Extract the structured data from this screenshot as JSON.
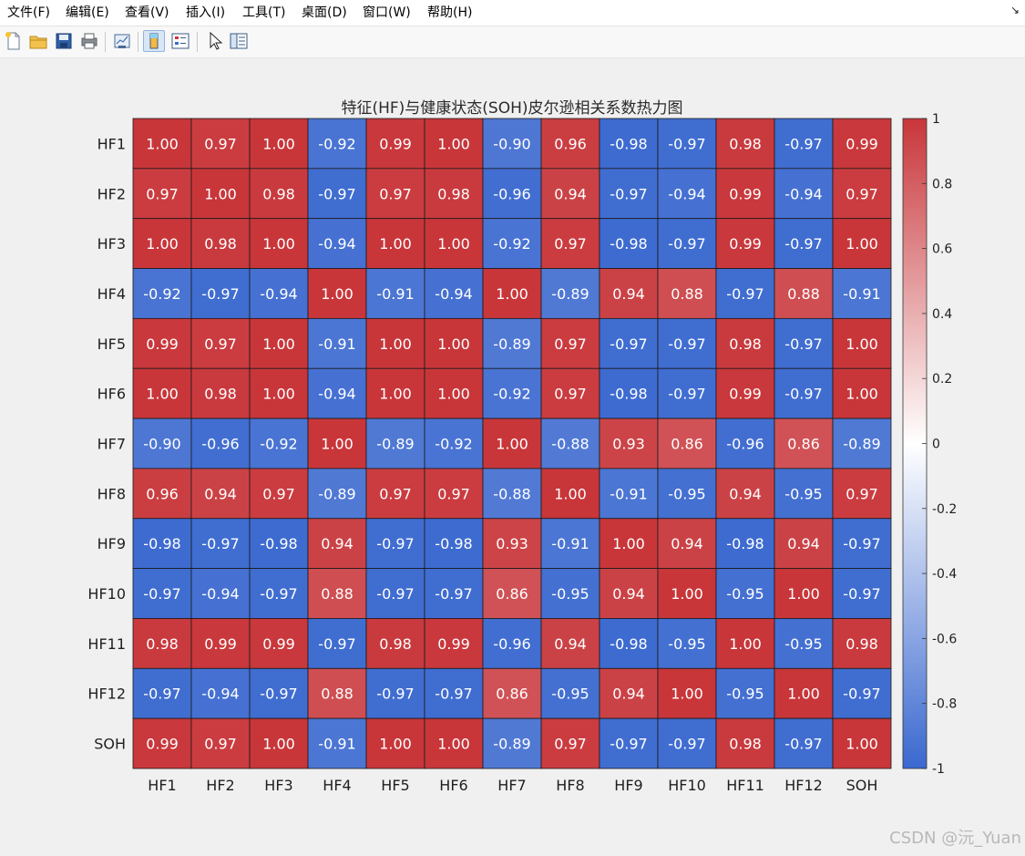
{
  "menubar": {
    "items": [
      {
        "label": "文件(F)"
      },
      {
        "label": "编辑(E)"
      },
      {
        "label": "查看(V)"
      },
      {
        "label": "插入(I)"
      },
      {
        "label": "工具(T)"
      },
      {
        "label": "桌面(D)"
      },
      {
        "label": "窗口(W)"
      },
      {
        "label": "帮助(H)"
      }
    ],
    "dock_icon": "↘"
  },
  "toolbar": {
    "buttons": [
      {
        "icon": "new-file-icon"
      },
      {
        "icon": "open-folder-icon"
      },
      {
        "icon": "save-icon"
      },
      {
        "icon": "print-icon"
      },
      {
        "icon": "link-plot-icon"
      },
      {
        "icon": "colorbar-toggle-icon",
        "active": true
      },
      {
        "icon": "legend-toggle-icon"
      },
      {
        "icon": "pointer-icon"
      },
      {
        "icon": "property-inspector-icon"
      }
    ]
  },
  "watermark": "CSDN @沅_Yuan",
  "chart_data": {
    "type": "heatmap",
    "title": "特征(HF)与健康状态(SOH)皮尔逊相关系数热力图",
    "x_labels": [
      "HF1",
      "HF2",
      "HF3",
      "HF4",
      "HF5",
      "HF6",
      "HF7",
      "HF8",
      "HF9",
      "HF10",
      "HF11",
      "HF12",
      "SOH"
    ],
    "y_labels": [
      "HF1",
      "HF2",
      "HF3",
      "HF4",
      "HF5",
      "HF6",
      "HF7",
      "HF8",
      "HF9",
      "HF10",
      "HF11",
      "HF12",
      "SOH"
    ],
    "values": [
      [
        "1.00",
        "0.97",
        "1.00",
        "-0.92",
        "0.99",
        "1.00",
        "-0.90",
        "0.96",
        "-0.98",
        "-0.97",
        "0.98",
        "-0.97",
        "0.99"
      ],
      [
        "0.97",
        "1.00",
        "0.98",
        "-0.97",
        "0.97",
        "0.98",
        "-0.96",
        "0.94",
        "-0.97",
        "-0.94",
        "0.99",
        "-0.94",
        "0.97"
      ],
      [
        "1.00",
        "0.98",
        "1.00",
        "-0.94",
        "1.00",
        "1.00",
        "-0.92",
        "0.97",
        "-0.98",
        "-0.97",
        "0.99",
        "-0.97",
        "1.00"
      ],
      [
        "-0.92",
        "-0.97",
        "-0.94",
        "1.00",
        "-0.91",
        "-0.94",
        "1.00",
        "-0.89",
        "0.94",
        "0.88",
        "-0.97",
        "0.88",
        "-0.91"
      ],
      [
        "0.99",
        "0.97",
        "1.00",
        "-0.91",
        "1.00",
        "1.00",
        "-0.89",
        "0.97",
        "-0.97",
        "-0.97",
        "0.98",
        "-0.97",
        "1.00"
      ],
      [
        "1.00",
        "0.98",
        "1.00",
        "-0.94",
        "1.00",
        "1.00",
        "-0.92",
        "0.97",
        "-0.98",
        "-0.97",
        "0.99",
        "-0.97",
        "1.00"
      ],
      [
        "-0.90",
        "-0.96",
        "-0.92",
        "1.00",
        "-0.89",
        "-0.92",
        "1.00",
        "-0.88",
        "0.93",
        "0.86",
        "-0.96",
        "0.86",
        "-0.89"
      ],
      [
        "0.96",
        "0.94",
        "0.97",
        "-0.89",
        "0.97",
        "0.97",
        "-0.88",
        "1.00",
        "-0.91",
        "-0.95",
        "0.94",
        "-0.95",
        "0.97"
      ],
      [
        "-0.98",
        "-0.97",
        "-0.98",
        "0.94",
        "-0.97",
        "-0.98",
        "0.93",
        "-0.91",
        "1.00",
        "0.94",
        "-0.98",
        "0.94",
        "-0.97"
      ],
      [
        "-0.97",
        "-0.94",
        "-0.97",
        "0.88",
        "-0.97",
        "-0.97",
        "0.86",
        "-0.95",
        "0.94",
        "1.00",
        "-0.95",
        "1.00",
        "-0.97"
      ],
      [
        "0.98",
        "0.99",
        "0.99",
        "-0.97",
        "0.98",
        "0.99",
        "-0.96",
        "0.94",
        "-0.98",
        "-0.95",
        "1.00",
        "-0.95",
        "0.98"
      ],
      [
        "-0.97",
        "-0.94",
        "-0.97",
        "0.88",
        "-0.97",
        "-0.97",
        "0.86",
        "-0.95",
        "0.94",
        "1.00",
        "-0.95",
        "1.00",
        "-0.97"
      ],
      [
        "0.99",
        "0.97",
        "1.00",
        "-0.91",
        "1.00",
        "1.00",
        "-0.89",
        "0.97",
        "-0.97",
        "-0.97",
        "0.98",
        "-0.97",
        "1.00"
      ]
    ],
    "colorbar": {
      "range": [
        -1,
        1
      ],
      "ticks": [
        "1",
        "0.8",
        "0.6",
        "0.4",
        "0.2",
        "0",
        "-0.2",
        "-0.4",
        "-0.6",
        "-0.8",
        "-1"
      ],
      "colormap": {
        "low": "#3a68cf",
        "mid": "#ffffff",
        "high": "#c8363a"
      }
    },
    "cell_text_color": "#ffffff",
    "grid": "on"
  }
}
